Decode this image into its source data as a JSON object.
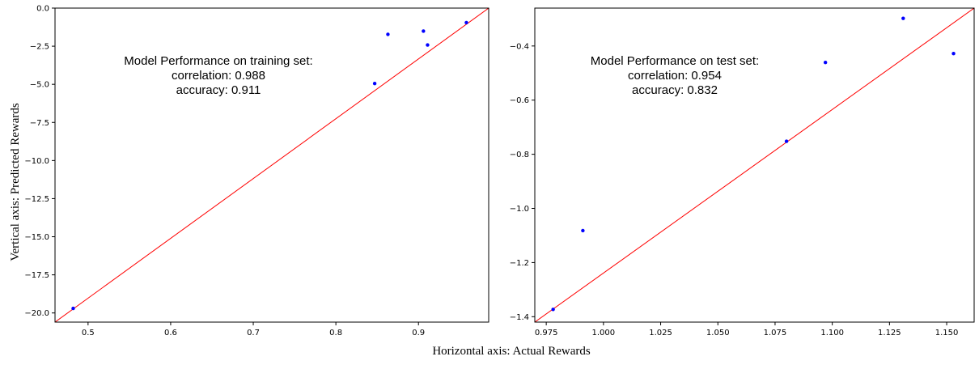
{
  "figure": {
    "xlabel": "Horizontal axis: Actual Rewards",
    "ylabel": "Vertical axis: Predicted Rewards"
  },
  "chart_data": [
    {
      "type": "scatter",
      "annotation": [
        "Model Performance on training set:",
        "correlation: 0.988",
        "accuracy: 0.911"
      ],
      "xlim": [
        0.46,
        0.985
      ],
      "ylim": [
        -20.6,
        0.0
      ],
      "xticks": [
        0.5,
        0.6,
        0.7,
        0.8,
        0.9
      ],
      "xtick_labels": [
        "0.5",
        "0.6",
        "0.7",
        "0.8",
        "0.9"
      ],
      "yticks": [
        0.0,
        -2.5,
        -5.0,
        -7.5,
        -10.0,
        -12.5,
        -15.0,
        -17.5,
        -20.0
      ],
      "ytick_labels": [
        "0.0",
        "−2.5",
        "−5.0",
        "−7.5",
        "−10.0",
        "−12.5",
        "−15.0",
        "−17.5",
        "−20.0"
      ],
      "points": [
        {
          "x": 0.482,
          "y": -19.7
        },
        {
          "x": 0.847,
          "y": -4.95
        },
        {
          "x": 0.863,
          "y": -1.72
        },
        {
          "x": 0.906,
          "y": -1.51
        },
        {
          "x": 0.911,
          "y": -2.42
        },
        {
          "x": 0.958,
          "y": -0.95
        }
      ],
      "reference_line": {
        "x": [
          0.46,
          0.985
        ],
        "y": [
          -20.6,
          0.0
        ]
      },
      "grid": false,
      "colors": {
        "points": "#0000ff",
        "line": "#ff0000"
      }
    },
    {
      "type": "scatter",
      "annotation": [
        "Model Performance on test set:",
        "correlation: 0.954",
        "accuracy: 0.832"
      ],
      "xlim": [
        0.97,
        1.162
      ],
      "ylim": [
        -1.42,
        -0.26
      ],
      "xticks": [
        0.975,
        1.0,
        1.025,
        1.05,
        1.075,
        1.1,
        1.125,
        1.15
      ],
      "xtick_labels": [
        "0.975",
        "1.000",
        "1.025",
        "1.050",
        "1.075",
        "1.100",
        "1.125",
        "1.150"
      ],
      "yticks": [
        -0.4,
        -0.6,
        -0.8,
        -1.0,
        -1.2,
        -1.4
      ],
      "ytick_labels": [
        "−0.4",
        "−0.6",
        "−0.8",
        "−1.0",
        "−1.2",
        "−1.4"
      ],
      "points": [
        {
          "x": 0.978,
          "y": -1.373
        },
        {
          "x": 0.991,
          "y": -1.082
        },
        {
          "x": 1.08,
          "y": -0.752
        },
        {
          "x": 1.097,
          "y": -0.461
        },
        {
          "x": 1.131,
          "y": -0.298
        },
        {
          "x": 1.153,
          "y": -0.428
        }
      ],
      "reference_line": {
        "x": [
          0.97,
          1.162
        ],
        "y": [
          -1.42,
          -0.26
        ]
      },
      "grid": false,
      "colors": {
        "points": "#0000ff",
        "line": "#ff0000"
      }
    }
  ]
}
